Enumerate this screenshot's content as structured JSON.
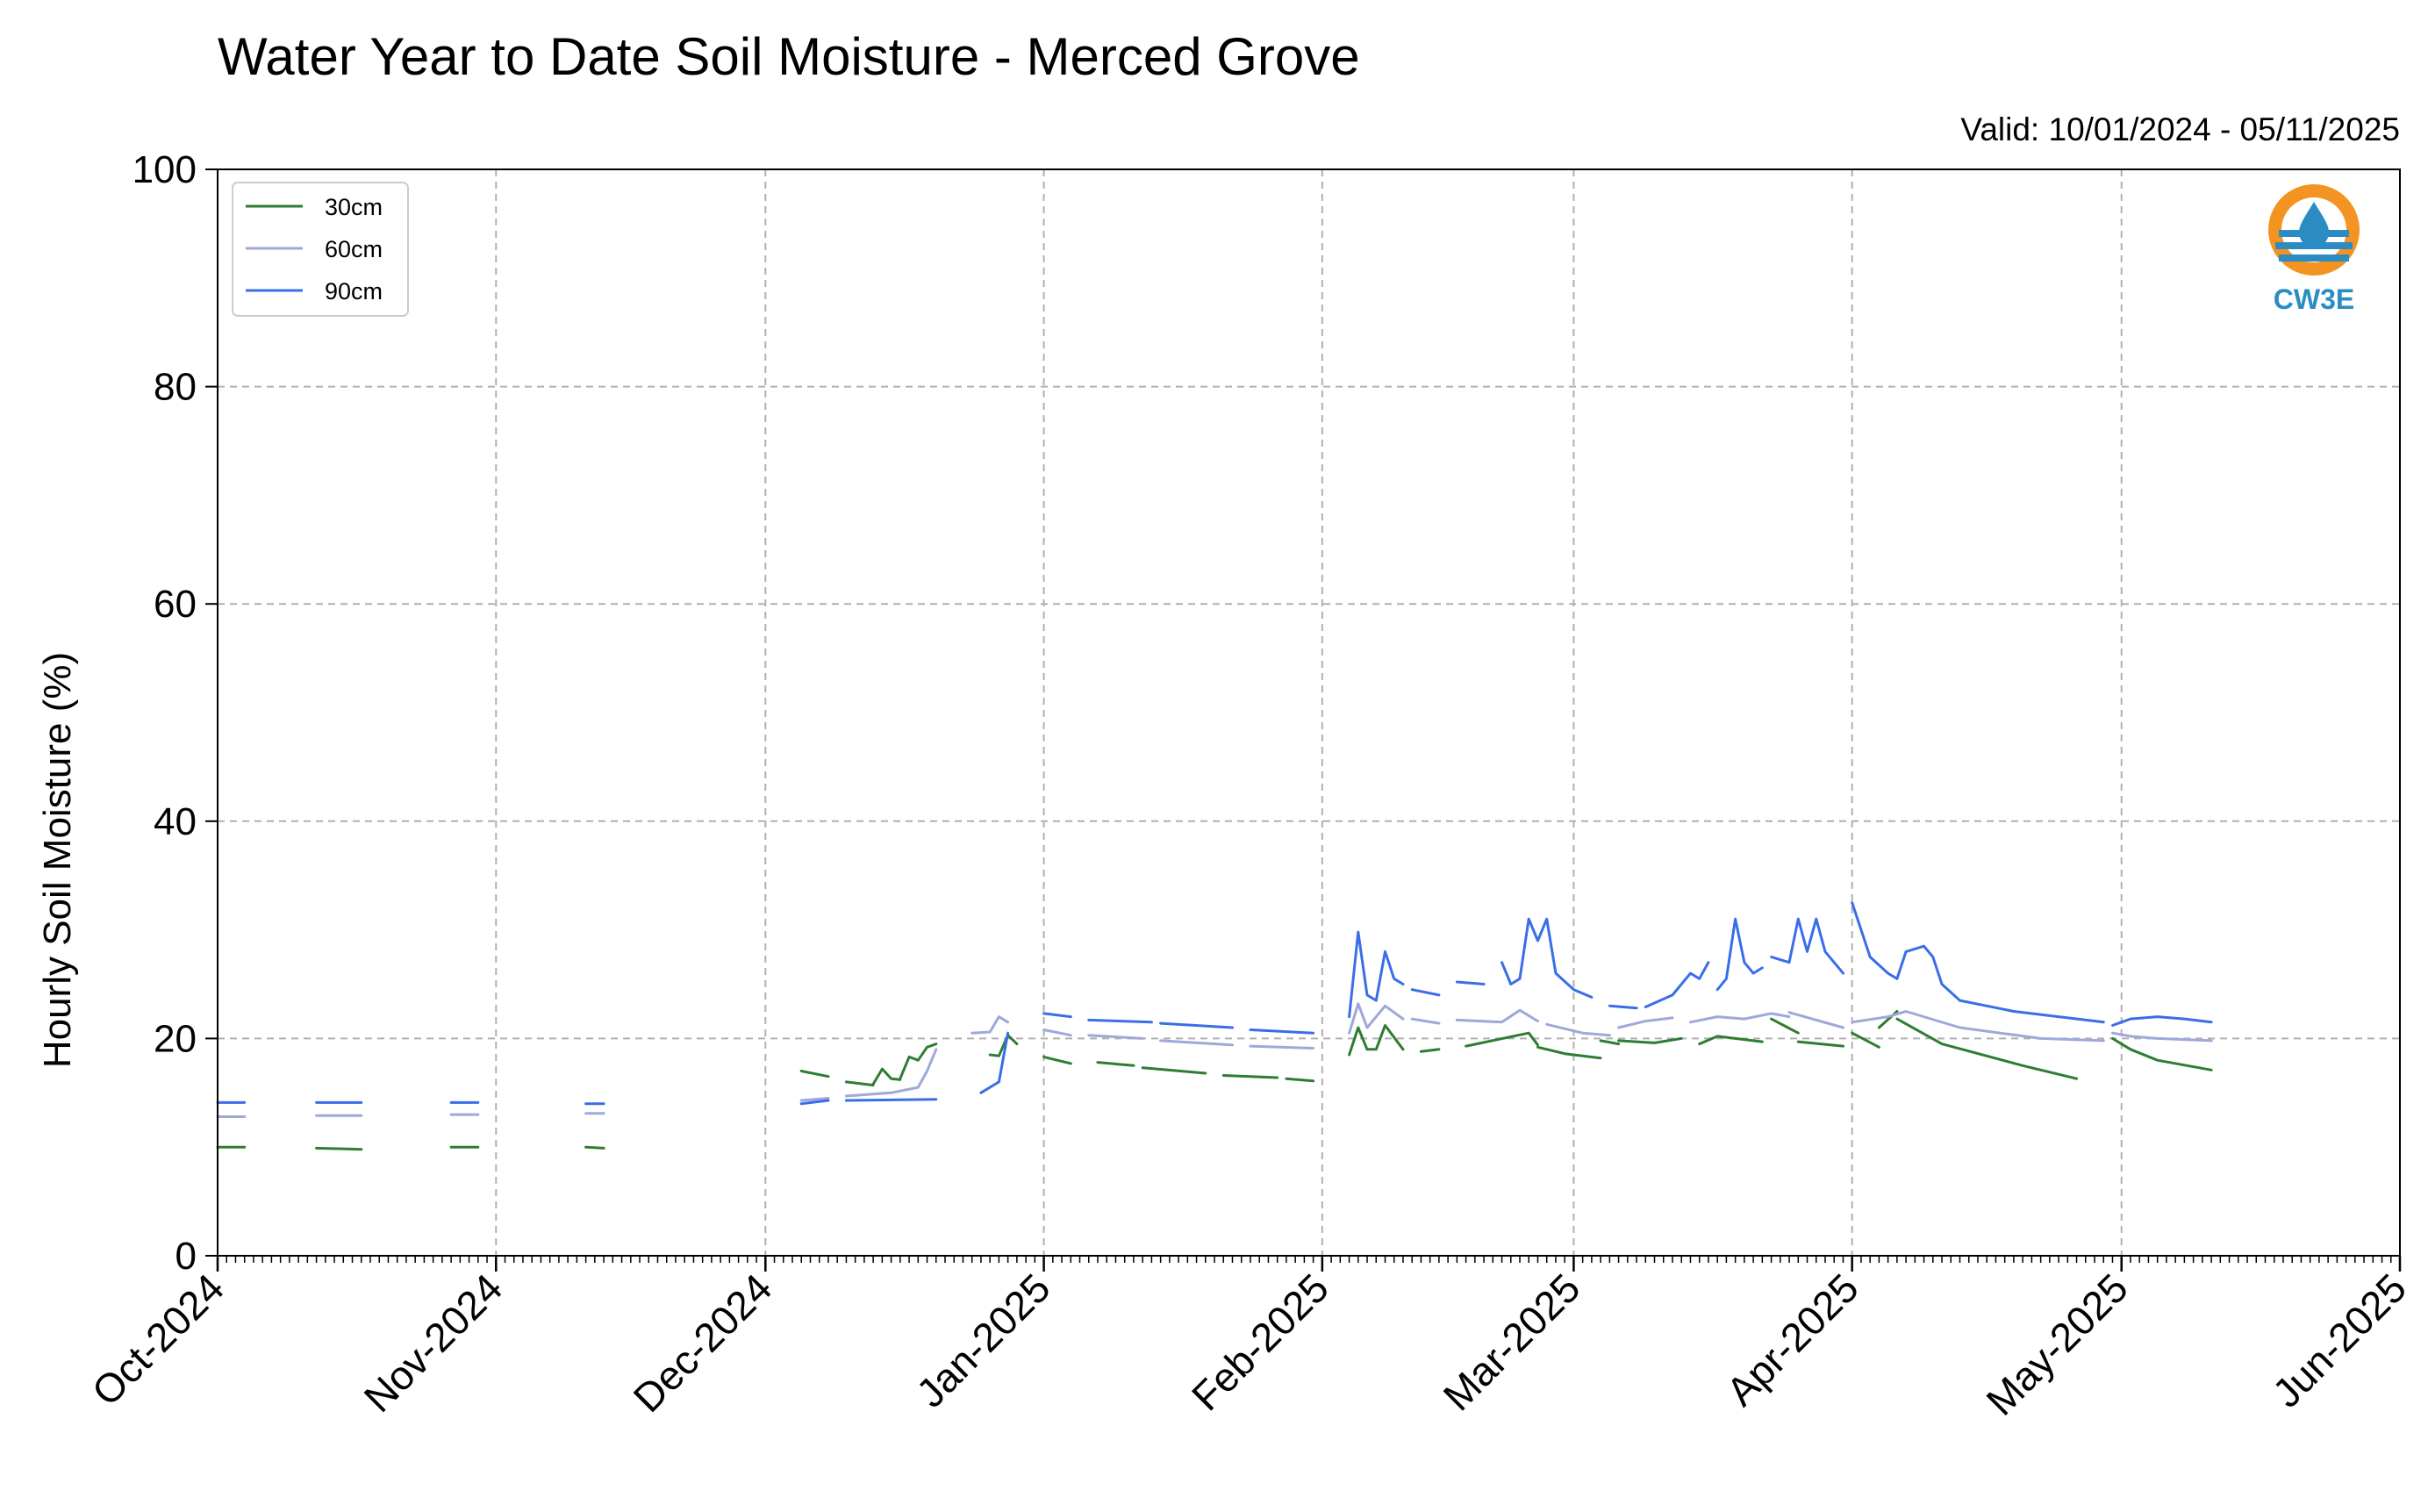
{
  "chart_data": {
    "type": "line",
    "title": "Water Year to Date Soil Moisture - Merced Grove",
    "subtitle": "Valid: 10/01/2024 - 05/11/2025",
    "ylabel": "Hourly Soil Moisture (%)",
    "xlabel": "",
    "ylim": [
      0,
      100
    ],
    "yticks": [
      0,
      20,
      40,
      60,
      80,
      100
    ],
    "xlim": [
      "2024-10-01",
      "2025-06-01"
    ],
    "xticks": [
      {
        "date": "2024-10-01",
        "label": "Oct-2024"
      },
      {
        "date": "2024-11-01",
        "label": "Nov-2024"
      },
      {
        "date": "2024-12-01",
        "label": "Dec-2024"
      },
      {
        "date": "2025-01-01",
        "label": "Jan-2025"
      },
      {
        "date": "2025-02-01",
        "label": "Feb-2025"
      },
      {
        "date": "2025-03-01",
        "label": "Mar-2025"
      },
      {
        "date": "2025-04-01",
        "label": "Apr-2025"
      },
      {
        "date": "2025-05-01",
        "label": "May-2025"
      },
      {
        "date": "2025-06-01",
        "label": "Jun-2025"
      }
    ],
    "grid": true,
    "legend_position": "top-left",
    "series": [
      {
        "name": "30cm",
        "color": "#2e7d32",
        "segments": [
          [
            [
              "2024-10-01",
              10
            ],
            [
              "2024-10-04",
              10
            ]
          ],
          [
            [
              "2024-10-12",
              9.9
            ],
            [
              "2024-10-17",
              9.8
            ]
          ],
          [
            [
              "2024-10-27",
              10
            ],
            [
              "2024-10-30",
              10
            ]
          ],
          [
            [
              "2024-11-11",
              10
            ],
            [
              "2024-11-13",
              9.9
            ]
          ],
          [
            [
              "2024-12-05",
              17
            ],
            [
              "2024-12-08",
              16.5
            ]
          ],
          [
            [
              "2024-12-10",
              16
            ],
            [
              "2024-12-13",
              15.7
            ]
          ],
          [
            [
              "2024-12-13",
              15.8
            ],
            [
              "2024-12-14",
              17.2
            ],
            [
              "2024-12-15",
              16.3
            ],
            [
              "2024-12-16",
              16.2
            ]
          ],
          [
            [
              "2024-12-16",
              16.3
            ],
            [
              "2024-12-17",
              18.3
            ],
            [
              "2024-12-18",
              18.0
            ],
            [
              "2024-12-19",
              19.2
            ],
            [
              "2024-12-20",
              19.5
            ]
          ],
          [
            [
              "2024-12-26",
              18.5
            ],
            [
              "2024-12-27",
              18.4
            ],
            [
              "2024-12-28",
              20.3
            ],
            [
              "2024-12-29",
              19.5
            ]
          ],
          [
            [
              "2025-01-01",
              18.3
            ],
            [
              "2025-01-04",
              17.7
            ]
          ],
          [
            [
              "2025-01-07",
              17.8
            ],
            [
              "2025-01-11",
              17.5
            ]
          ],
          [
            [
              "2025-01-12",
              17.3
            ],
            [
              "2025-01-19",
              16.8
            ]
          ],
          [
            [
              "2025-01-21",
              16.6
            ],
            [
              "2025-01-27",
              16.4
            ]
          ],
          [
            [
              "2025-01-28",
              16.3
            ],
            [
              "2025-01-31",
              16.1
            ]
          ],
          [
            [
              "2025-02-04",
              18.5
            ],
            [
              "2025-02-05",
              21.0
            ],
            [
              "2025-02-06",
              19.0
            ],
            [
              "2025-02-07",
              19.0
            ],
            [
              "2025-02-08",
              21.2
            ],
            [
              "2025-02-10",
              19.0
            ]
          ],
          [
            [
              "2025-02-12",
              18.8
            ],
            [
              "2025-02-14",
              19.0
            ]
          ],
          [
            [
              "2025-02-17",
              19.3
            ],
            [
              "2025-02-24",
              20.5
            ],
            [
              "2025-02-25",
              19.4
            ]
          ],
          [
            [
              "2025-02-25",
              19.2
            ],
            [
              "2025-02-28",
              18.6
            ],
            [
              "2025-03-04",
              18.2
            ]
          ],
          [
            [
              "2025-03-04",
              19.8
            ],
            [
              "2025-03-06",
              19.5
            ]
          ],
          [
            [
              "2025-03-06",
              19.8
            ],
            [
              "2025-03-10",
              19.6
            ],
            [
              "2025-03-13",
              20.0
            ]
          ],
          [
            [
              "2025-03-15",
              19.5
            ],
            [
              "2025-03-17",
              20.2
            ],
            [
              "2025-03-22",
              19.7
            ]
          ],
          [
            [
              "2025-03-23",
              21.8
            ],
            [
              "2025-03-26",
              20.5
            ]
          ],
          [
            [
              "2025-03-26",
              19.7
            ],
            [
              "2025-03-31",
              19.3
            ]
          ],
          [
            [
              "2025-04-01",
              20.5
            ],
            [
              "2025-04-04",
              19.2
            ]
          ],
          [
            [
              "2025-04-04",
              21.0
            ],
            [
              "2025-04-06",
              22.5
            ]
          ],
          [
            [
              "2025-04-06",
              21.8
            ],
            [
              "2025-04-11",
              19.5
            ],
            [
              "2025-04-20",
              17.5
            ],
            [
              "2025-04-26",
              16.3
            ]
          ],
          [
            [
              "2025-04-30",
              20.0
            ],
            [
              "2025-05-02",
              19.0
            ],
            [
              "2025-05-05",
              18.0
            ],
            [
              "2025-05-11",
              17.1
            ]
          ]
        ]
      },
      {
        "name": "60cm",
        "color": "#9fa8da",
        "segments": [
          [
            [
              "2024-10-01",
              12.8
            ],
            [
              "2024-10-04",
              12.8
            ]
          ],
          [
            [
              "2024-10-12",
              12.9
            ],
            [
              "2024-10-17",
              12.9
            ]
          ],
          [
            [
              "2024-10-27",
              13.0
            ],
            [
              "2024-10-30",
              13.0
            ]
          ],
          [
            [
              "2024-11-11",
              13.1
            ],
            [
              "2024-11-13",
              13.1
            ]
          ],
          [
            [
              "2024-12-05",
              14.3
            ],
            [
              "2024-12-08",
              14.5
            ]
          ],
          [
            [
              "2024-12-10",
              14.7
            ],
            [
              "2024-12-15",
              15.0
            ],
            [
              "2024-12-18",
              15.5
            ],
            [
              "2024-12-19",
              17.0
            ],
            [
              "2024-12-20",
              19.0
            ]
          ],
          [
            [
              "2024-12-24",
              20.5
            ],
            [
              "2024-12-26",
              20.6
            ],
            [
              "2024-12-27",
              22.0
            ],
            [
              "2024-12-28",
              21.5
            ]
          ],
          [
            [
              "2025-01-01",
              20.8
            ],
            [
              "2025-01-04",
              20.3
            ]
          ],
          [
            [
              "2025-01-06",
              20.3
            ],
            [
              "2025-01-12",
              20.0
            ]
          ],
          [
            [
              "2025-01-14",
              19.8
            ],
            [
              "2025-01-22",
              19.4
            ]
          ],
          [
            [
              "2025-01-24",
              19.3
            ],
            [
              "2025-01-31",
              19.1
            ]
          ],
          [
            [
              "2025-02-04",
              20.5
            ],
            [
              "2025-02-05",
              23.2
            ],
            [
              "2025-02-06",
              21.0
            ],
            [
              "2025-02-07",
              22.0
            ],
            [
              "2025-02-08",
              23.0
            ],
            [
              "2025-02-10",
              21.8
            ]
          ],
          [
            [
              "2025-02-11",
              21.8
            ],
            [
              "2025-02-14",
              21.4
            ]
          ],
          [
            [
              "2025-02-16",
              21.7
            ],
            [
              "2025-02-21",
              21.5
            ],
            [
              "2025-02-23",
              22.6
            ],
            [
              "2025-02-25",
              21.6
            ]
          ],
          [
            [
              "2025-02-26",
              21.3
            ],
            [
              "2025-03-02",
              20.5
            ],
            [
              "2025-03-05",
              20.3
            ]
          ],
          [
            [
              "2025-03-06",
              21.0
            ],
            [
              "2025-03-09",
              21.6
            ],
            [
              "2025-03-12",
              21.9
            ]
          ],
          [
            [
              "2025-03-14",
              21.5
            ],
            [
              "2025-03-17",
              22.0
            ],
            [
              "2025-03-20",
              21.8
            ],
            [
              "2025-03-23",
              22.3
            ],
            [
              "2025-03-25",
              22.0
            ]
          ],
          [
            [
              "2025-03-25",
              22.4
            ],
            [
              "2025-03-31",
              21.0
            ]
          ],
          [
            [
              "2025-04-01",
              21.5
            ],
            [
              "2025-04-05",
              22.0
            ],
            [
              "2025-04-07",
              22.5
            ],
            [
              "2025-04-13",
              21.0
            ],
            [
              "2025-04-22",
              20.0
            ],
            [
              "2025-04-29",
              19.8
            ]
          ],
          [
            [
              "2025-04-30",
              20.5
            ],
            [
              "2025-05-02",
              20.2
            ],
            [
              "2025-05-05",
              20.0
            ],
            [
              "2025-05-11",
              19.8
            ]
          ]
        ]
      },
      {
        "name": "90cm",
        "color": "#3a6ee8",
        "segments": [
          [
            [
              "2024-10-01",
              14.1
            ],
            [
              "2024-10-04",
              14.1
            ]
          ],
          [
            [
              "2024-10-12",
              14.1
            ],
            [
              "2024-10-17",
              14.1
            ]
          ],
          [
            [
              "2024-10-27",
              14.1
            ],
            [
              "2024-10-30",
              14.1
            ]
          ],
          [
            [
              "2024-11-11",
              14.0
            ],
            [
              "2024-11-13",
              14.0
            ]
          ],
          [
            [
              "2024-12-05",
              14.0
            ],
            [
              "2024-12-08",
              14.3
            ]
          ],
          [
            [
              "2024-12-10",
              14.3
            ],
            [
              "2024-12-20",
              14.4
            ]
          ],
          [
            [
              "2024-12-25",
              15.0
            ],
            [
              "2024-12-27",
              16.0
            ],
            [
              "2024-12-28",
              20.5
            ]
          ],
          [
            [
              "2025-01-01",
              22.3
            ],
            [
              "2025-01-04",
              22.0
            ]
          ],
          [
            [
              "2025-01-06",
              21.7
            ],
            [
              "2025-01-13",
              21.5
            ]
          ],
          [
            [
              "2025-01-14",
              21.4
            ],
            [
              "2025-01-22",
              21.0
            ]
          ],
          [
            [
              "2025-01-24",
              20.8
            ],
            [
              "2025-01-31",
              20.5
            ]
          ],
          [
            [
              "2025-02-04",
              22.0
            ],
            [
              "2025-02-05",
              29.8
            ],
            [
              "2025-02-06",
              24.0
            ],
            [
              "2025-02-07",
              23.5
            ],
            [
              "2025-02-08",
              28.0
            ],
            [
              "2025-02-09",
              25.5
            ],
            [
              "2025-02-10",
              25.0
            ]
          ],
          [
            [
              "2025-02-11",
              24.5
            ],
            [
              "2025-02-14",
              24.0
            ]
          ],
          [
            [
              "2025-02-16",
              25.2
            ],
            [
              "2025-02-19",
              25.0
            ]
          ],
          [
            [
              "2025-02-21",
              27.0
            ],
            [
              "2025-02-22",
              25.0
            ],
            [
              "2025-02-23",
              25.5
            ],
            [
              "2025-02-24",
              31.0
            ],
            [
              "2025-02-25",
              29.0
            ],
            [
              "2025-02-26",
              31.0
            ],
            [
              "2025-02-27",
              26.0
            ],
            [
              "2025-03-01",
              24.5
            ],
            [
              "2025-03-03",
              23.8
            ]
          ],
          [
            [
              "2025-03-05",
              23.0
            ],
            [
              "2025-03-08",
              22.8
            ]
          ],
          [
            [
              "2025-03-09",
              22.9
            ],
            [
              "2025-03-12",
              24.0
            ],
            [
              "2025-03-14",
              26.0
            ],
            [
              "2025-03-15",
              25.5
            ],
            [
              "2025-03-16",
              27.0
            ]
          ],
          [
            [
              "2025-03-17",
              24.5
            ],
            [
              "2025-03-18",
              25.5
            ],
            [
              "2025-03-19",
              31.0
            ],
            [
              "2025-03-20",
              27.0
            ],
            [
              "2025-03-21",
              26.0
            ],
            [
              "2025-03-22",
              26.5
            ]
          ],
          [
            [
              "2025-03-23",
              27.5
            ],
            [
              "2025-03-25",
              27.0
            ],
            [
              "2025-03-26",
              31.0
            ],
            [
              "2025-03-27",
              28.0
            ],
            [
              "2025-03-28",
              31.0
            ],
            [
              "2025-03-29",
              28.0
            ],
            [
              "2025-03-31",
              26.0
            ]
          ],
          [
            [
              "2025-04-01",
              32.5
            ],
            [
              "2025-04-03",
              27.5
            ],
            [
              "2025-04-05",
              26.0
            ],
            [
              "2025-04-06",
              25.5
            ],
            [
              "2025-04-07",
              28.0
            ],
            [
              "2025-04-09",
              28.5
            ],
            [
              "2025-04-10",
              27.5
            ],
            [
              "2025-04-11",
              25.0
            ],
            [
              "2025-04-13",
              23.5
            ],
            [
              "2025-04-19",
              22.5
            ],
            [
              "2025-04-29",
              21.5
            ]
          ],
          [
            [
              "2025-04-30",
              21.2
            ],
            [
              "2025-05-02",
              21.8
            ],
            [
              "2025-05-05",
              22.0
            ],
            [
              "2025-05-08",
              21.8
            ],
            [
              "2025-05-11",
              21.5
            ]
          ]
        ]
      }
    ]
  },
  "logo": {
    "text": "CW3E",
    "orange": "#f39322",
    "blue": "#2b8cc4"
  }
}
